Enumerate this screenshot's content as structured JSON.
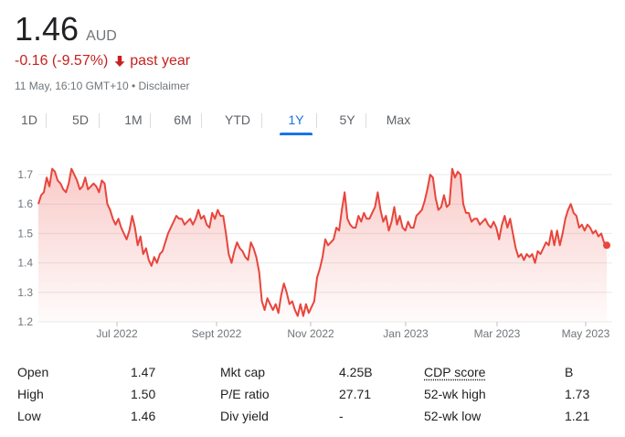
{
  "quote": {
    "price": "1.46",
    "currency": "AUD",
    "change": "-0.16 (-9.57%)",
    "period": "past year",
    "timestamp": "11 May, 16:10 GMT+10",
    "bullet": "•",
    "disclaimer": "Disclaimer"
  },
  "tabs": [
    {
      "label": "1D",
      "active": false
    },
    {
      "label": "5D",
      "active": false
    },
    {
      "label": "1M",
      "active": false
    },
    {
      "label": "6M",
      "active": false
    },
    {
      "label": "YTD",
      "active": false
    },
    {
      "label": "1Y",
      "active": true
    },
    {
      "label": "5Y",
      "active": false
    },
    {
      "label": "Max",
      "active": false
    }
  ],
  "colors": {
    "line": "#e8453c",
    "down": "#c5221f",
    "accent": "#1a73e8",
    "grid": "#e8eaed"
  },
  "chart_data": {
    "type": "area",
    "ylim": [
      1.2,
      1.7
    ],
    "yticks": [
      "1.7",
      "1.6",
      "1.5",
      "1.4",
      "1.3",
      "1.2"
    ],
    "x_tick_labels": [
      "Jul 2022",
      "Sept 2022",
      "Nov 2022",
      "Jan 2023",
      "Mar 2023",
      "May 2023"
    ],
    "grid": true,
    "series": [
      {
        "values": [
          1.6,
          1.63,
          1.64,
          1.69,
          1.66,
          1.72,
          1.71,
          1.68,
          1.67,
          1.65,
          1.64,
          1.67,
          1.72,
          1.7,
          1.68,
          1.65,
          1.66,
          1.69,
          1.65,
          1.66,
          1.67,
          1.66,
          1.64,
          1.68,
          1.67,
          1.6,
          1.58,
          1.55,
          1.53,
          1.55,
          1.52,
          1.5,
          1.48,
          1.51,
          1.56,
          1.52,
          1.46,
          1.49,
          1.43,
          1.45,
          1.41,
          1.39,
          1.42,
          1.4,
          1.43,
          1.44,
          1.47,
          1.5,
          1.52,
          1.54,
          1.56,
          1.55,
          1.55,
          1.53,
          1.54,
          1.55,
          1.53,
          1.55,
          1.58,
          1.55,
          1.56,
          1.53,
          1.52,
          1.57,
          1.55,
          1.58,
          1.56,
          1.56,
          1.5,
          1.43,
          1.4,
          1.44,
          1.47,
          1.45,
          1.44,
          1.42,
          1.41,
          1.47,
          1.45,
          1.42,
          1.37,
          1.27,
          1.24,
          1.28,
          1.26,
          1.24,
          1.26,
          1.23,
          1.29,
          1.33,
          1.3,
          1.26,
          1.27,
          1.24,
          1.22,
          1.26,
          1.22,
          1.26,
          1.23,
          1.25,
          1.27,
          1.35,
          1.38,
          1.42,
          1.48,
          1.46,
          1.47,
          1.48,
          1.52,
          1.51,
          1.58,
          1.64,
          1.55,
          1.53,
          1.52,
          1.52,
          1.56,
          1.54,
          1.57,
          1.55,
          1.55,
          1.57,
          1.59,
          1.64,
          1.58,
          1.54,
          1.56,
          1.51,
          1.54,
          1.59,
          1.53,
          1.56,
          1.52,
          1.51,
          1.54,
          1.52,
          1.52,
          1.56,
          1.57,
          1.58,
          1.61,
          1.65,
          1.7,
          1.69,
          1.62,
          1.58,
          1.59,
          1.63,
          1.59,
          1.6,
          1.72,
          1.69,
          1.71,
          1.7,
          1.6,
          1.57,
          1.57,
          1.54,
          1.55,
          1.55,
          1.53,
          1.54,
          1.55,
          1.53,
          1.52,
          1.54,
          1.52,
          1.48,
          1.53,
          1.56,
          1.52,
          1.55,
          1.5,
          1.45,
          1.42,
          1.43,
          1.41,
          1.43,
          1.42,
          1.43,
          1.4,
          1.44,
          1.43,
          1.45,
          1.47,
          1.46,
          1.51,
          1.46,
          1.51,
          1.46,
          1.5,
          1.55,
          1.58,
          1.6,
          1.57,
          1.56,
          1.52,
          1.53,
          1.51,
          1.53,
          1.52,
          1.5,
          1.51,
          1.49,
          1.5,
          1.47,
          1.46
        ]
      }
    ]
  },
  "stats": {
    "rows": [
      [
        "Open",
        "1.47",
        "Mkt cap",
        "4.25B",
        "CDP score",
        "B"
      ],
      [
        "High",
        "1.50",
        "P/E ratio",
        "27.71",
        "52-wk high",
        "1.73"
      ],
      [
        "Low",
        "1.46",
        "Div yield",
        "-",
        "52-wk low",
        "1.21"
      ]
    ]
  }
}
